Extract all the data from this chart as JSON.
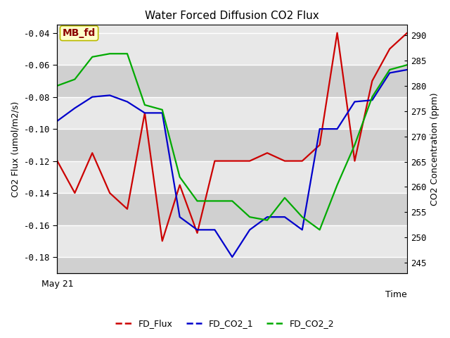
{
  "title": "Water Forced Diffusion CO2 Flux",
  "xlabel": "Time",
  "ylabel_left": "CO2 Flux (umol/m2/s)",
  "ylabel_right": "CO2 Concentration (ppm)",
  "x_tick_label": "May 21",
  "annotation_text": "MB_fd",
  "annotation_bg": "#ffffcc",
  "annotation_border": "#bbbb00",
  "annotation_text_color": "#8b0000",
  "ylim_left": [
    -0.19,
    -0.035
  ],
  "ylim_right": [
    243.0,
    292.0
  ],
  "yticks_left": [
    -0.18,
    -0.16,
    -0.14,
    -0.12,
    -0.1,
    -0.08,
    -0.06,
    -0.04
  ],
  "yticks_right": [
    245,
    250,
    255,
    260,
    265,
    270,
    275,
    280,
    285,
    290
  ],
  "fig_bg_color": "#ffffff",
  "plot_bg_color": "#e8e8e8",
  "band_color_dark": "#d0d0d0",
  "grid_color": "#ffffff",
  "fd_flux_color": "#cc0000",
  "fd_co2_1_color": "#0000cc",
  "fd_co2_2_color": "#00aa00",
  "fd_flux_y": [
    -0.12,
    -0.14,
    -0.115,
    -0.14,
    -0.15,
    -0.09,
    -0.17,
    -0.135,
    -0.165,
    -0.12,
    -0.12,
    -0.12,
    -0.115,
    -0.12,
    -0.12,
    -0.11,
    -0.04,
    -0.12,
    -0.07,
    -0.05,
    -0.04
  ],
  "fd_co2_1_y": [
    -0.095,
    -0.087,
    -0.08,
    -0.079,
    -0.083,
    -0.09,
    -0.09,
    -0.155,
    -0.163,
    -0.163,
    -0.18,
    -0.163,
    -0.155,
    -0.155,
    -0.163,
    -0.1,
    -0.1,
    -0.083,
    -0.082,
    -0.065,
    -0.063
  ],
  "fd_co2_2_y": [
    -0.073,
    -0.069,
    -0.055,
    -0.053,
    -0.053,
    -0.085,
    -0.088,
    -0.13,
    -0.145,
    -0.145,
    -0.145,
    -0.155,
    -0.157,
    -0.143,
    -0.155,
    -0.163,
    -0.135,
    -0.11,
    -0.08,
    -0.063,
    -0.06
  ],
  "legend_entries": [
    "FD_Flux",
    "FD_CO2_1",
    "FD_CO2_2"
  ],
  "legend_colors": [
    "#cc0000",
    "#0000cc",
    "#00aa00"
  ],
  "line_width": 1.6
}
